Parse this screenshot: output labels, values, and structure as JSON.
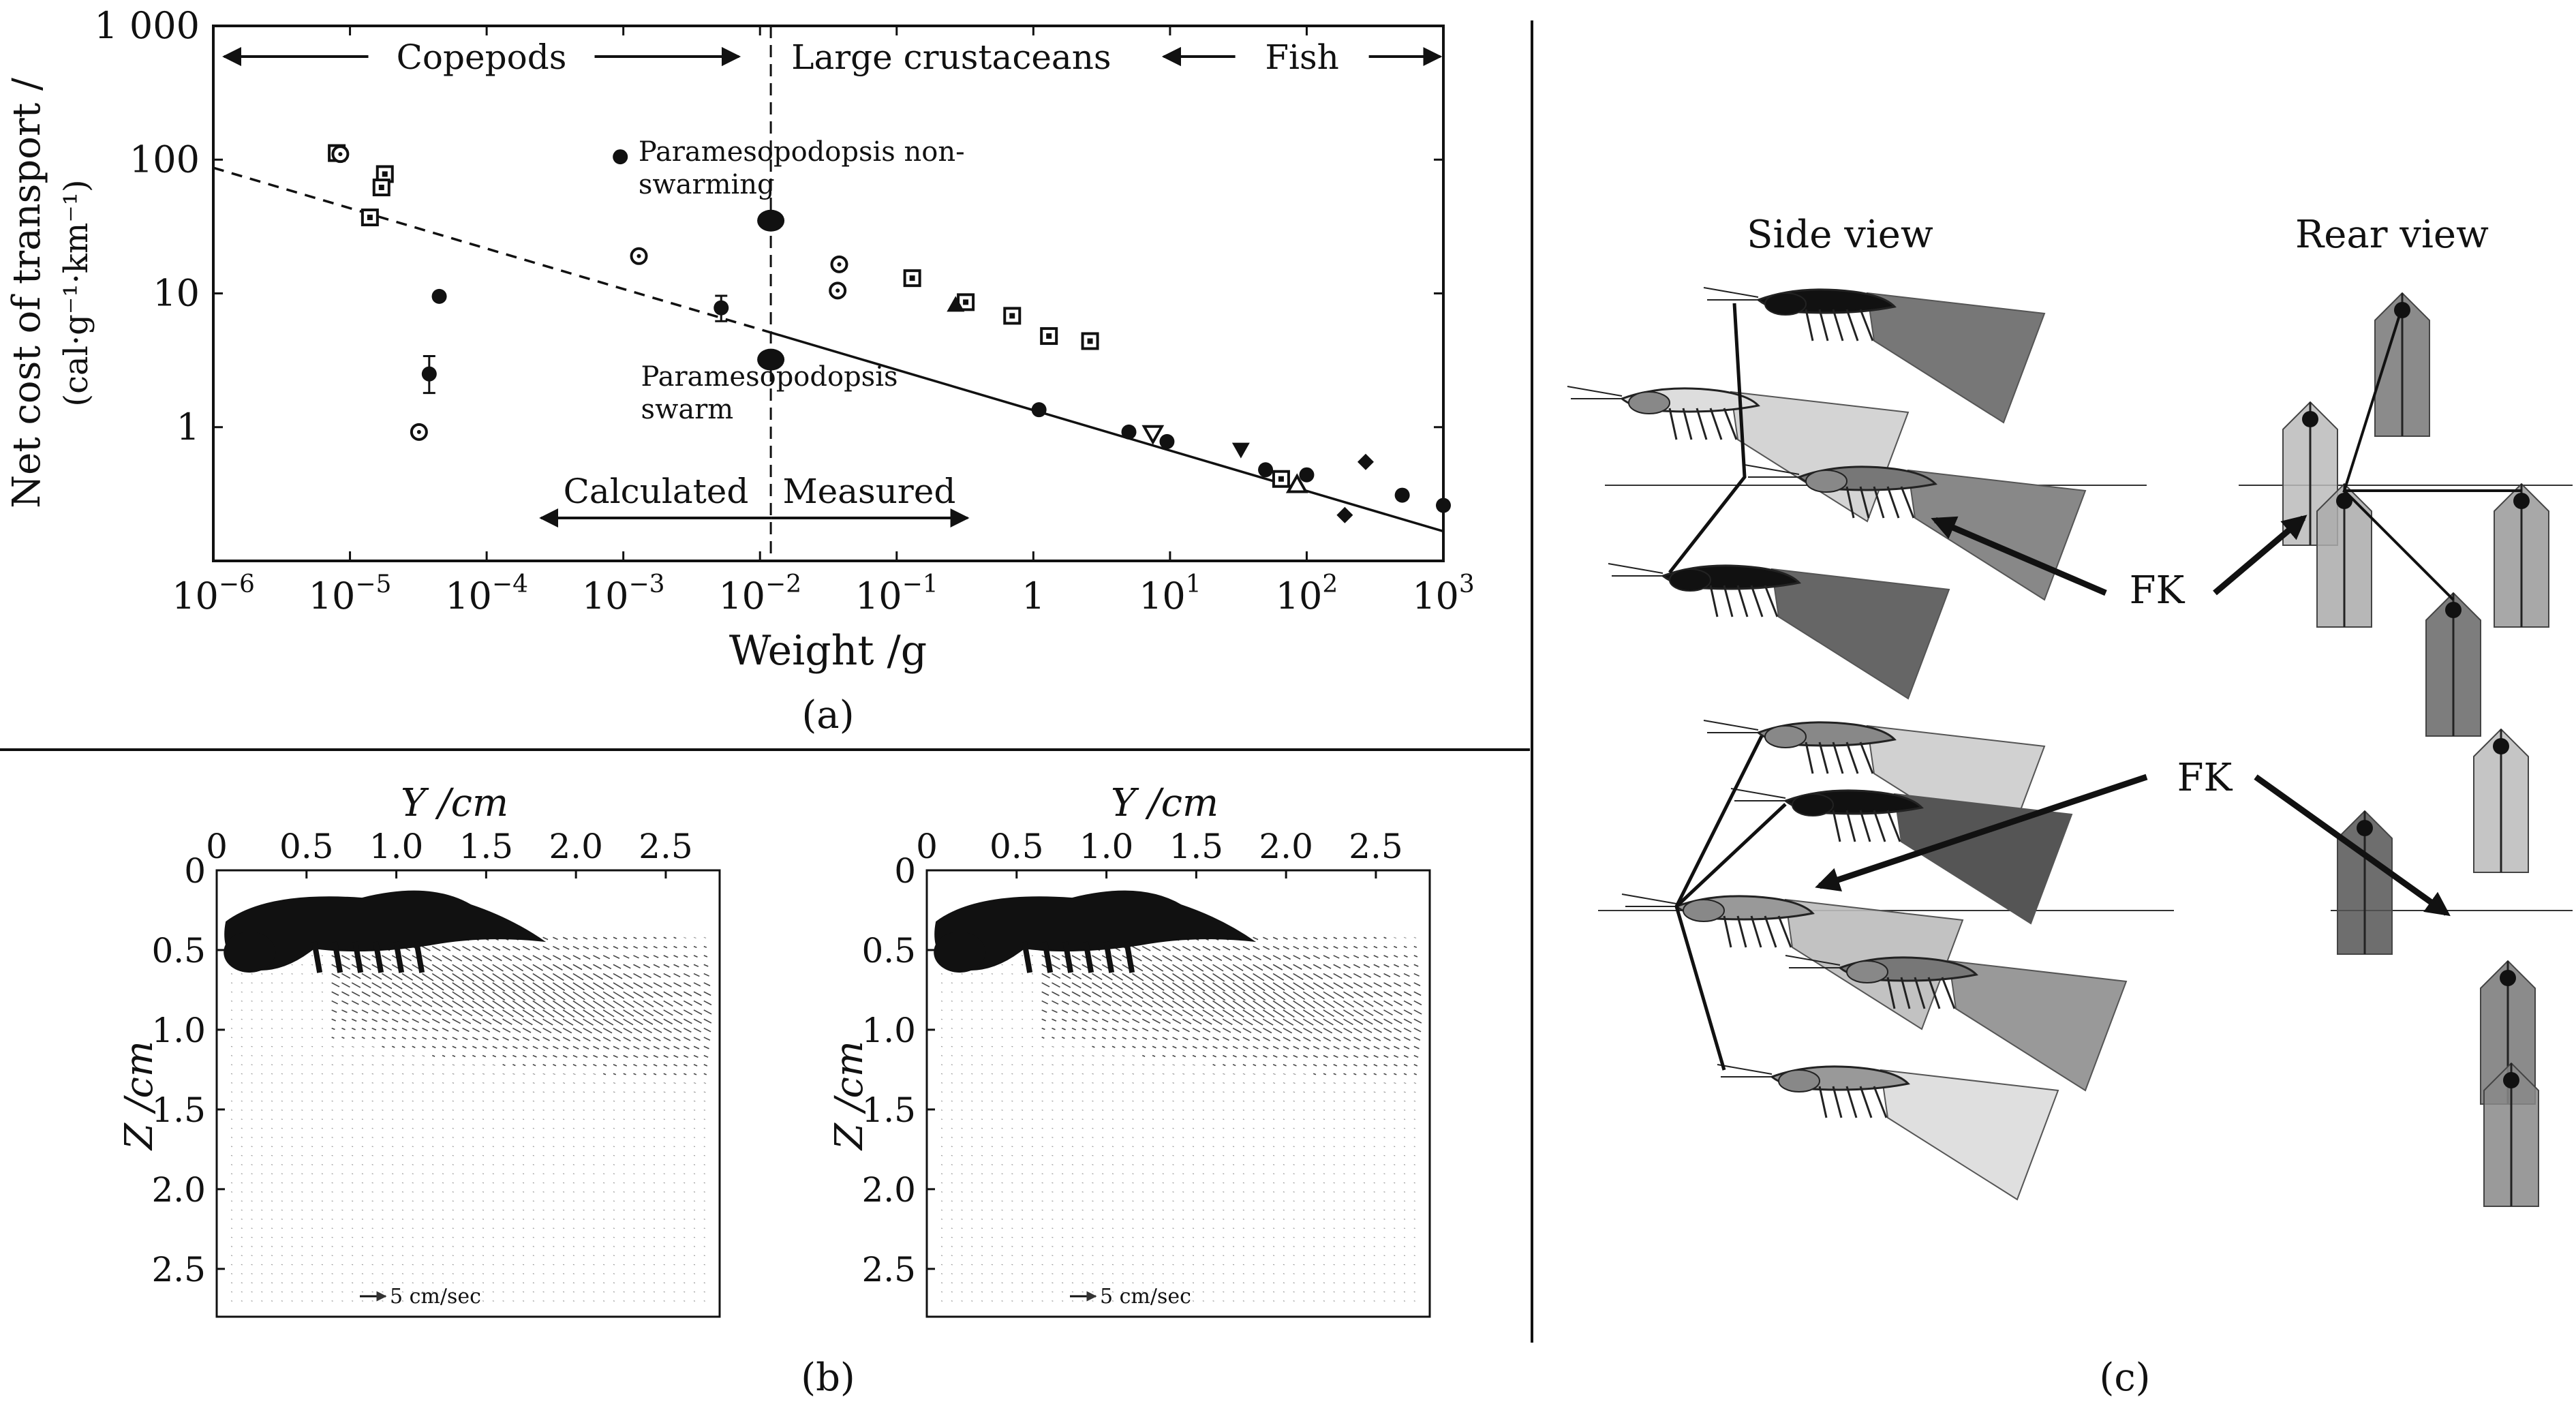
{
  "panel_labels": {
    "a": "(a)",
    "b": "(b)",
    "c": "(c)"
  },
  "chart_data": [
    {
      "type": "scatter",
      "panel": "(a)",
      "xlabel": "Weight /g",
      "ylabel_line1": "Net cost of transport /",
      "ylabel_line2": "(cal·g⁻¹·km⁻¹)",
      "xscale": "log",
      "yscale": "log",
      "xlim": [
        1e-06,
        1000
      ],
      "ylim": [
        0.1,
        1000
      ],
      "x_ticks": [
        {
          "value": 1e-06,
          "base": "10",
          "exp": "−6"
        },
        {
          "value": 1e-05,
          "base": "10",
          "exp": "−5"
        },
        {
          "value": 0.0001,
          "base": "10",
          "exp": "−4"
        },
        {
          "value": 0.001,
          "base": "10",
          "exp": "−3"
        },
        {
          "value": 0.01,
          "base": "10",
          "exp": "−2"
        },
        {
          "value": 0.1,
          "base": "10",
          "exp": "−1"
        },
        {
          "value": 1,
          "base": "1",
          "exp": ""
        },
        {
          "value": 10,
          "base": "10",
          "exp": "1"
        },
        {
          "value": 100,
          "base": "10",
          "exp": "2"
        },
        {
          "value": 1000,
          "base": "10",
          "exp": "3"
        }
      ],
      "y_ticks": [
        {
          "value": 1,
          "label": "1"
        },
        {
          "value": 10,
          "label": "10"
        },
        {
          "value": 100,
          "label": "100"
        },
        {
          "value": 1000,
          "label": "1 000"
        }
      ],
      "grid": false,
      "groups": [
        {
          "label": "Copepods",
          "x_from": 1.2e-06,
          "x_to": 0.007
        },
        {
          "label": "Large crustaceans",
          "x_from": 0.007,
          "x_to": 9
        },
        {
          "label": "Fish",
          "x_from": 9,
          "x_to": 950
        }
      ],
      "regions": [
        {
          "label": "Calculated",
          "x_from": 0.00025,
          "x_to": 0.012
        },
        {
          "label": "Measured",
          "x_from": 0.012,
          "x_to": 0.33
        }
      ],
      "divider_x": 0.012,
      "fit_line": {
        "slope": -0.302,
        "intercept_at_1g": 1.34,
        "dashed_from": 1e-06,
        "dashed_to": 0.012,
        "solid_to": 1000
      },
      "annotations": [
        {
          "id": "nonswarm",
          "lines": [
            "Paramesopodopsis non-",
            "swarming"
          ],
          "x": 0.00115,
          "y": 110
        },
        {
          "id": "swarm",
          "lines": [
            "Paramesopodopsis",
            "swarm"
          ],
          "x": 0.0012,
          "y": 2.3
        }
      ],
      "series": [
        {
          "marker": "filled-circle",
          "points": [
            [
              4.5e-05,
              9.5
            ],
            [
              0.00095,
              105
            ],
            [
              1.1,
              1.35
            ],
            [
              5,
              0.92
            ],
            [
              9.5,
              0.78
            ],
            [
              50,
              0.48
            ],
            [
              100,
              0.44
            ],
            [
              500,
              0.31
            ],
            [
              1000,
              0.26
            ]
          ]
        },
        {
          "marker": "filled-circle-errorbar",
          "points": [
            {
              "x": 3.8e-05,
              "y": 2.5,
              "lo": 1.8,
              "hi": 3.4
            },
            {
              "x": 0.0052,
              "y": 7.8,
              "lo": 6.2,
              "hi": 9.6
            }
          ]
        },
        {
          "marker": "filled-ellipse-large",
          "points": [
            [
              0.012,
              35
            ],
            [
              0.012,
              3.2
            ]
          ]
        },
        {
          "marker": "open-square",
          "points": [
            [
              8e-06,
              112
            ],
            [
              1.8e-05,
              78
            ],
            [
              1.7e-05,
              62
            ],
            [
              1.4e-05,
              37
            ],
            [
              0.13,
              13
            ],
            [
              0.32,
              8.6
            ],
            [
              0.7,
              6.8
            ],
            [
              1.3,
              4.8
            ],
            [
              2.6,
              4.4
            ],
            [
              65,
              0.41
            ]
          ]
        },
        {
          "marker": "open-circle",
          "points": [
            [
              8.5e-06,
              110
            ],
            [
              3.2e-05,
              0.92
            ],
            [
              0.0013,
              19
            ],
            [
              0.038,
              16.5
            ],
            [
              0.037,
              10.5
            ]
          ]
        },
        {
          "marker": "filled-triangle",
          "points": [
            [
              0.27,
              8.2
            ]
          ]
        },
        {
          "marker": "open-triangle",
          "points": [
            [
              85,
              0.37
            ]
          ]
        },
        {
          "marker": "open-triangle-down",
          "points": [
            [
              7.5,
              0.9
            ]
          ]
        },
        {
          "marker": "filled-triangle-down",
          "points": [
            [
              33,
              0.68
            ]
          ]
        },
        {
          "marker": "filled-diamond",
          "points": [
            [
              270,
              0.55
            ],
            [
              190,
              0.22
            ]
          ]
        }
      ]
    },
    {
      "type": "vector-field",
      "panel": "(b)",
      "xlabel": "Y /cm",
      "ylabel": "Z /cm",
      "xlim": [
        0,
        2.8
      ],
      "ylim": [
        2.8,
        0
      ],
      "x_ticks": [
        "0",
        "0.5",
        "1.0",
        "1.5",
        "2.0",
        "2.5"
      ],
      "y_ticks": [
        "0",
        "0.5",
        "1.0",
        "1.5",
        "2.0",
        "2.5"
      ],
      "scale_label": "5 cm/sec",
      "subplots": 2
    }
  ],
  "panel_c": {
    "side_view_title": "Side view",
    "rear_view_title": "Rear view",
    "fk_label": "FK"
  }
}
